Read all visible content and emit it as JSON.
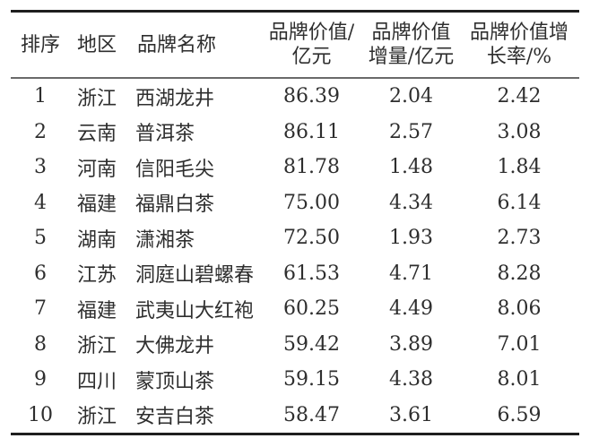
{
  "meta": {
    "background_color": "#ffffff",
    "text_color": "#2e2e2e",
    "thick_rule_color": "#1f1f1f",
    "header_rule_color": "#6a6a6a"
  },
  "table": {
    "headers": [
      {
        "label": "排序"
      },
      {
        "label": "地区"
      },
      {
        "label": "品牌名称"
      },
      {
        "line1": "品牌价值/",
        "line2": "亿元"
      },
      {
        "line1": "品牌价值",
        "line2": "增量/亿元"
      },
      {
        "line1": "品牌价值增",
        "line2": "长率/%"
      }
    ],
    "rows": [
      [
        "1",
        "浙江",
        "西湖龙井",
        "86.39",
        "2.04",
        "2.42"
      ],
      [
        "2",
        "云南",
        "普洱茶",
        "86.11",
        "2.57",
        "3.08"
      ],
      [
        "3",
        "河南",
        "信阳毛尖",
        "81.78",
        "1.48",
        "1.84"
      ],
      [
        "4",
        "福建",
        "福鼎白茶",
        "75.00",
        "4.34",
        "6.14"
      ],
      [
        "5",
        "湖南",
        "潇湘茶",
        "72.50",
        "1.93",
        "2.73"
      ],
      [
        "6",
        "江苏",
        "洞庭山碧螺春",
        "61.53",
        "4.71",
        "8.28"
      ],
      [
        "7",
        "福建",
        "武夷山大红袍",
        "60.25",
        "4.49",
        "8.06"
      ],
      [
        "8",
        "浙江",
        "大佛龙井",
        "59.42",
        "3.89",
        "7.01"
      ],
      [
        "9",
        "四川",
        "蒙顶山茶",
        "59.15",
        "4.38",
        "8.01"
      ],
      [
        "10",
        "浙江",
        "安吉白茶",
        "58.47",
        "3.61",
        "6.59"
      ]
    ]
  }
}
